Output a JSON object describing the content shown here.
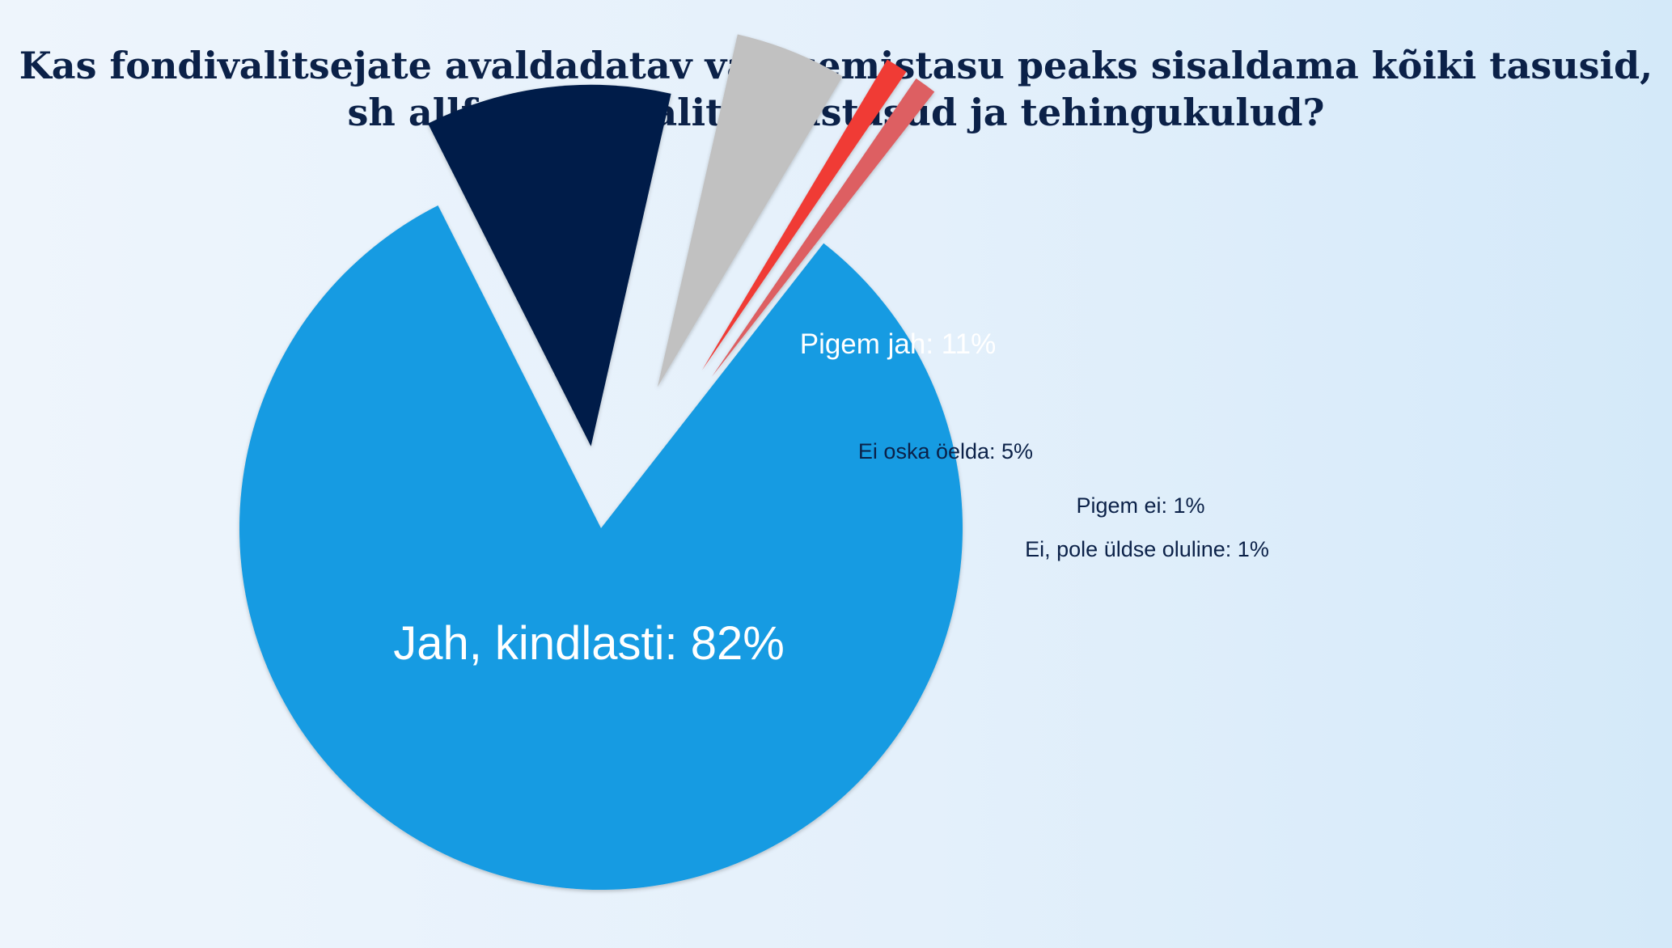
{
  "chart_data": {
    "type": "pie",
    "title": "Kas fondivalitsejate avaldadatav valitsemistasu peaks sisaldama kõiki tasusid, sh allfondide valitsemistasud ja tehingukulud?",
    "legend": "none",
    "slices": [
      {
        "label": "Jah, kindlasti: 82%",
        "name": "Jah, kindlasti",
        "value": 82,
        "color": "#139be2",
        "label_color": "#ffffff"
      },
      {
        "label": "Pigem jah: 11%",
        "name": "Pigem jah",
        "value": 11,
        "color": "#031e48",
        "label_color": "#ffffff"
      },
      {
        "label": "Ei oska öelda: 5%",
        "name": "Ei oska öelda",
        "value": 5,
        "color": "#c1c1c1",
        "label_color": "#0b2148"
      },
      {
        "label": "Pigem ei: 1%",
        "name": "Pigem ei",
        "value": 1,
        "color": "#f03a36",
        "label_color": "#0b2148"
      },
      {
        "label": "Ei, pole üldse oluline: 1%",
        "name": "Ei, pole üldse oluline",
        "value": 1,
        "color": "#dd5e62",
        "label_color": "#0b2148"
      }
    ]
  }
}
